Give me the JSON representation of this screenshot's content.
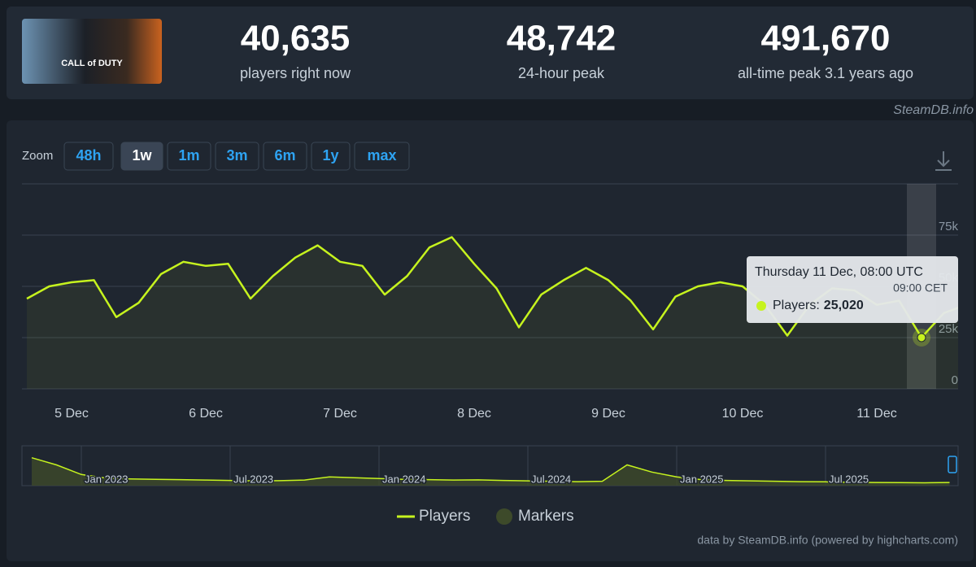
{
  "header": {
    "game_logo": "CALL of DUTY",
    "stats": [
      {
        "value": "40,635",
        "label": "players right now"
      },
      {
        "value": "48,742",
        "label": "24-hour peak"
      },
      {
        "value": "491,670",
        "label": "all-time peak 3.1 years ago"
      }
    ],
    "credit": "SteamDB.info"
  },
  "zoom": {
    "label": "Zoom",
    "options": [
      "48h",
      "1w",
      "1m",
      "3m",
      "6m",
      "1y",
      "max"
    ],
    "active": 1
  },
  "chart_data": [
    {
      "type": "line",
      "categories": [
        null,
        null,
        "5 Dec",
        null,
        null,
        null,
        null,
        null,
        "6 Dec",
        null,
        null,
        null,
        null,
        null,
        "7 Dec",
        null,
        null,
        null,
        null,
        null,
        "8 Dec",
        null,
        null,
        null,
        null,
        null,
        "9 Dec",
        null,
        null,
        null,
        null,
        null,
        "10 Dec",
        null,
        null,
        null,
        null,
        null,
        "11 Dec",
        null,
        null,
        null,
        null
      ],
      "series": [
        {
          "name": "Players",
          "color": "#c6f31e",
          "values": [
            44000,
            50000,
            52000,
            53000,
            35000,
            42000,
            56000,
            62000,
            60000,
            61000,
            44000,
            55000,
            64000,
            70000,
            62000,
            60000,
            46000,
            55000,
            69000,
            74000,
            61000,
            49000,
            30000,
            46000,
            53000,
            59000,
            53000,
            43000,
            29000,
            45000,
            50000,
            52000,
            50000,
            41000,
            26000,
            41000,
            49000,
            48000,
            41000,
            43000,
            25020,
            37000,
            41000
          ],
          "value_labels": [
            null,
            null,
            null,
            null,
            null,
            null,
            null,
            null,
            null,
            null,
            null,
            null,
            null,
            null,
            null,
            null,
            null,
            null,
            null,
            null,
            null,
            null,
            null,
            null,
            null,
            null,
            null,
            null,
            null,
            null,
            null,
            null,
            null,
            null,
            null,
            null,
            null,
            null,
            null,
            null,
            "25,020",
            null,
            null
          ]
        }
      ],
      "markers": {
        "name": "Markers",
        "color": "#3d4a2a"
      },
      "ylim": [
        0,
        100000
      ],
      "yticks": [
        {
          "value": 0,
          "label": "0"
        },
        {
          "value": 25000,
          "label": "25k"
        },
        {
          "value": 50000,
          "label": "50k"
        },
        {
          "value": 75000,
          "label": "75k"
        }
      ],
      "grid": true,
      "tooltip": {
        "title": "Thursday 11 Dec, 08:00 UTC",
        "subtitle": "09:00 CET",
        "label": "Players:"
      }
    },
    {
      "type": "area",
      "categories": [
        null,
        null,
        "Jan 2023",
        null,
        null,
        null,
        null,
        null,
        "Jul 2023",
        null,
        null,
        null,
        null,
        null,
        "Jan 2024",
        null,
        null,
        null,
        null,
        null,
        "Jul 2024",
        null,
        null,
        null,
        null,
        null,
        "Jan 2025",
        null,
        null,
        null,
        null,
        null,
        "Jul 2025",
        null,
        null,
        null,
        null,
        null
      ],
      "values": [
        350000,
        260000,
        140000,
        95000,
        85000,
        80000,
        75000,
        70000,
        65000,
        60000,
        62000,
        70000,
        110000,
        100000,
        90000,
        80000,
        75000,
        70000,
        72000,
        65000,
        60000,
        55000,
        50000,
        55000,
        260000,
        170000,
        110000,
        75000,
        65000,
        60000,
        55000,
        50000,
        48000,
        42000,
        40000,
        38000,
        36000,
        40000
      ],
      "color": "#c6f31e",
      "ylim": [
        0,
        500000
      ]
    }
  ],
  "footer": "data by SteamDB.info (powered by highcharts.com)"
}
